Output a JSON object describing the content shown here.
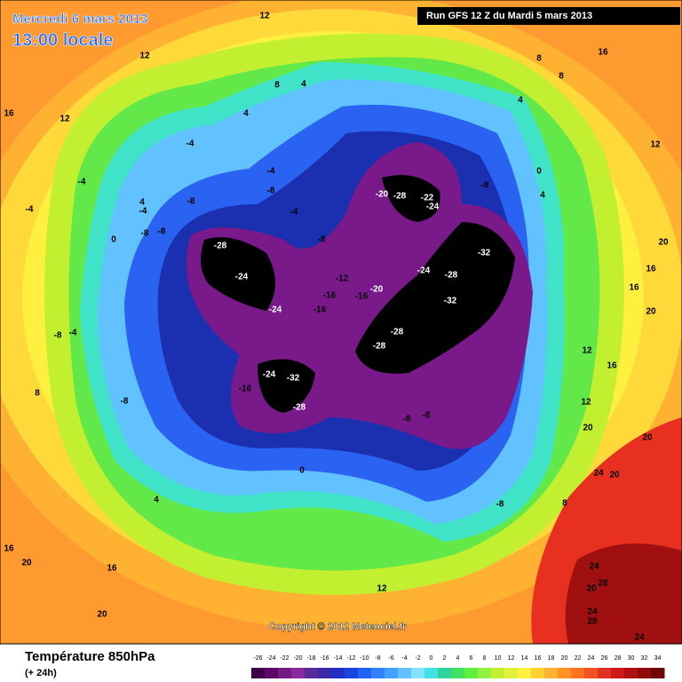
{
  "header": {
    "date": "Mercredi 6 mars 2013",
    "time": "13:00 locale",
    "run": "Run GFS 12 Z du Mardi 5 mars 2013"
  },
  "copyright": "Copyright © 2012 Meteociel.fr",
  "footer": {
    "title": "Température 850hPa",
    "lead": "(+ 24h)"
  },
  "colorbar": {
    "ticks": [
      -26,
      -24,
      -22,
      -20,
      -18,
      -16,
      -14,
      -12,
      -10,
      -8,
      -6,
      -4,
      -2,
      0,
      2,
      4,
      6,
      8,
      10,
      12,
      14,
      16,
      18,
      20,
      22,
      24,
      26,
      28,
      30,
      32,
      34
    ],
    "colors": [
      "#3c0046",
      "#5a0a64",
      "#741a82",
      "#8a2aa0",
      "#5a2a96",
      "#3a2aa8",
      "#2030c4",
      "#1a44e0",
      "#2062f2",
      "#3282ff",
      "#42a2ff",
      "#62c2ff",
      "#84e2ff",
      "#40e2e2",
      "#30d2a0",
      "#40e060",
      "#62f040",
      "#92f040",
      "#c2f030",
      "#e2f040",
      "#fff040",
      "#ffd232",
      "#ffb232",
      "#ff9222",
      "#ff7222",
      "#f05222",
      "#e03222",
      "#d01818",
      "#b01010",
      "#900a0a",
      "#700505"
    ]
  },
  "contour_labels": [
    "12",
    "12",
    "16",
    "12",
    "8",
    "4",
    "4",
    "-4",
    "-4",
    "-4",
    "-8",
    "-8",
    "-8",
    "-4",
    "-4",
    "-8",
    "-4",
    "-8",
    "-28",
    "-24",
    "-24",
    "-16",
    "-12",
    "-16",
    "-20",
    "-16",
    "-20",
    "-28",
    "-22",
    "-24",
    "-8",
    "-32",
    "-24",
    "-28",
    "-32",
    "-28",
    "-28",
    "-32",
    "-24",
    "-28",
    "-16",
    "-8",
    "-8",
    "-4",
    "8",
    "-8",
    "-8",
    "0",
    "4",
    "-8",
    "8",
    "4",
    "0",
    "4",
    "8",
    "8",
    "16",
    "12",
    "20",
    "16",
    "16",
    "20",
    "12",
    "16",
    "12",
    "20",
    "20",
    "24",
    "20",
    "24",
    "28",
    "20",
    "24",
    "28",
    "24",
    "12",
    "16",
    "20",
    "16",
    "20",
    "0",
    "4"
  ]
}
